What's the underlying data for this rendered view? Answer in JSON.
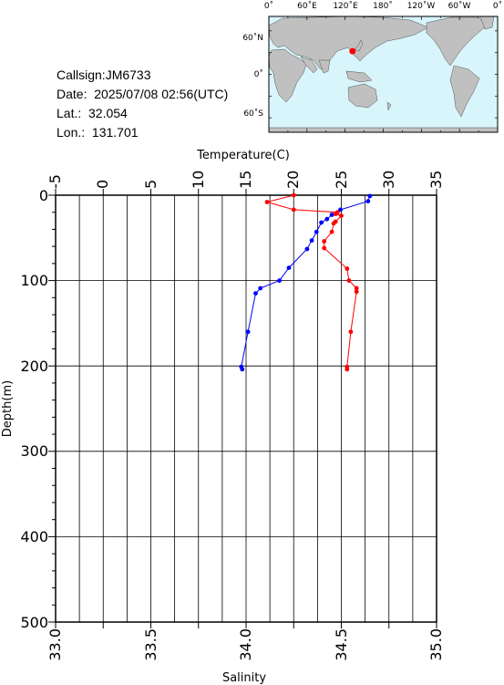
{
  "info": {
    "callsign": "Callsign:JM6733",
    "date": "Date:  2025/07/08 02:56(UTC)",
    "lat": "Lat.:  32.054",
    "lon": "Lon.:  131.701"
  },
  "map": {
    "top_labels": [
      "0˚",
      "60˚E",
      "120˚E",
      "180˚",
      "120˚W",
      "60˚W",
      "0˚"
    ],
    "left_labels": [
      "60˚N",
      "0˚",
      "60˚S"
    ],
    "ocean_color": "#d7f5fb",
    "land_color": "#c0c0c0",
    "marker_color": "#ff0000",
    "marker_lat": 32.054,
    "marker_lon": 131.701
  },
  "chart_data": {
    "type": "line",
    "temperature_axis": {
      "label": "Temperature(C)",
      "range": [
        -5,
        35
      ],
      "ticks": [
        "-5",
        "0",
        "5",
        "10",
        "15",
        "20",
        "25",
        "30",
        "35"
      ]
    },
    "salinity_axis": {
      "label": "Salinity",
      "range": [
        33.0,
        35.0
      ],
      "ticks": [
        "33.0",
        "33.5",
        "34.0",
        "34.5",
        "35.0"
      ]
    },
    "depth_axis": {
      "label": "Depth(m)",
      "range": [
        0,
        500
      ],
      "ticks": [
        "0",
        "100",
        "200",
        "300",
        "400",
        "500"
      ],
      "inverted": true
    },
    "grid": true,
    "series": [
      {
        "variable": "temperature",
        "color": "#0000ff",
        "points": [
          [
            28.0,
            1
          ],
          [
            27.8,
            7
          ],
          [
            24.9,
            17
          ],
          [
            24.0,
            23
          ],
          [
            23.5,
            28
          ],
          [
            22.9,
            32
          ],
          [
            22.4,
            43
          ],
          [
            21.9,
            53
          ],
          [
            21.4,
            63
          ],
          [
            19.5,
            85
          ],
          [
            18.5,
            100
          ],
          [
            16.5,
            109
          ],
          [
            16.0,
            115
          ],
          [
            15.2,
            160
          ],
          [
            14.5,
            201
          ],
          [
            14.6,
            204
          ]
        ]
      },
      {
        "variable": "salinity",
        "color": "#ff0000",
        "points": [
          [
            34.25,
            0
          ],
          [
            34.11,
            8
          ],
          [
            34.25,
            17
          ],
          [
            34.48,
            20
          ],
          [
            34.47,
            22
          ],
          [
            34.5,
            24
          ],
          [
            34.47,
            31
          ],
          [
            34.46,
            33
          ],
          [
            34.45,
            43
          ],
          [
            34.41,
            54
          ],
          [
            34.41,
            62
          ],
          [
            34.53,
            86
          ],
          [
            34.54,
            100
          ],
          [
            34.58,
            109
          ],
          [
            34.58,
            113
          ],
          [
            34.55,
            160
          ],
          [
            34.53,
            201
          ],
          [
            34.53,
            204
          ]
        ]
      }
    ]
  }
}
